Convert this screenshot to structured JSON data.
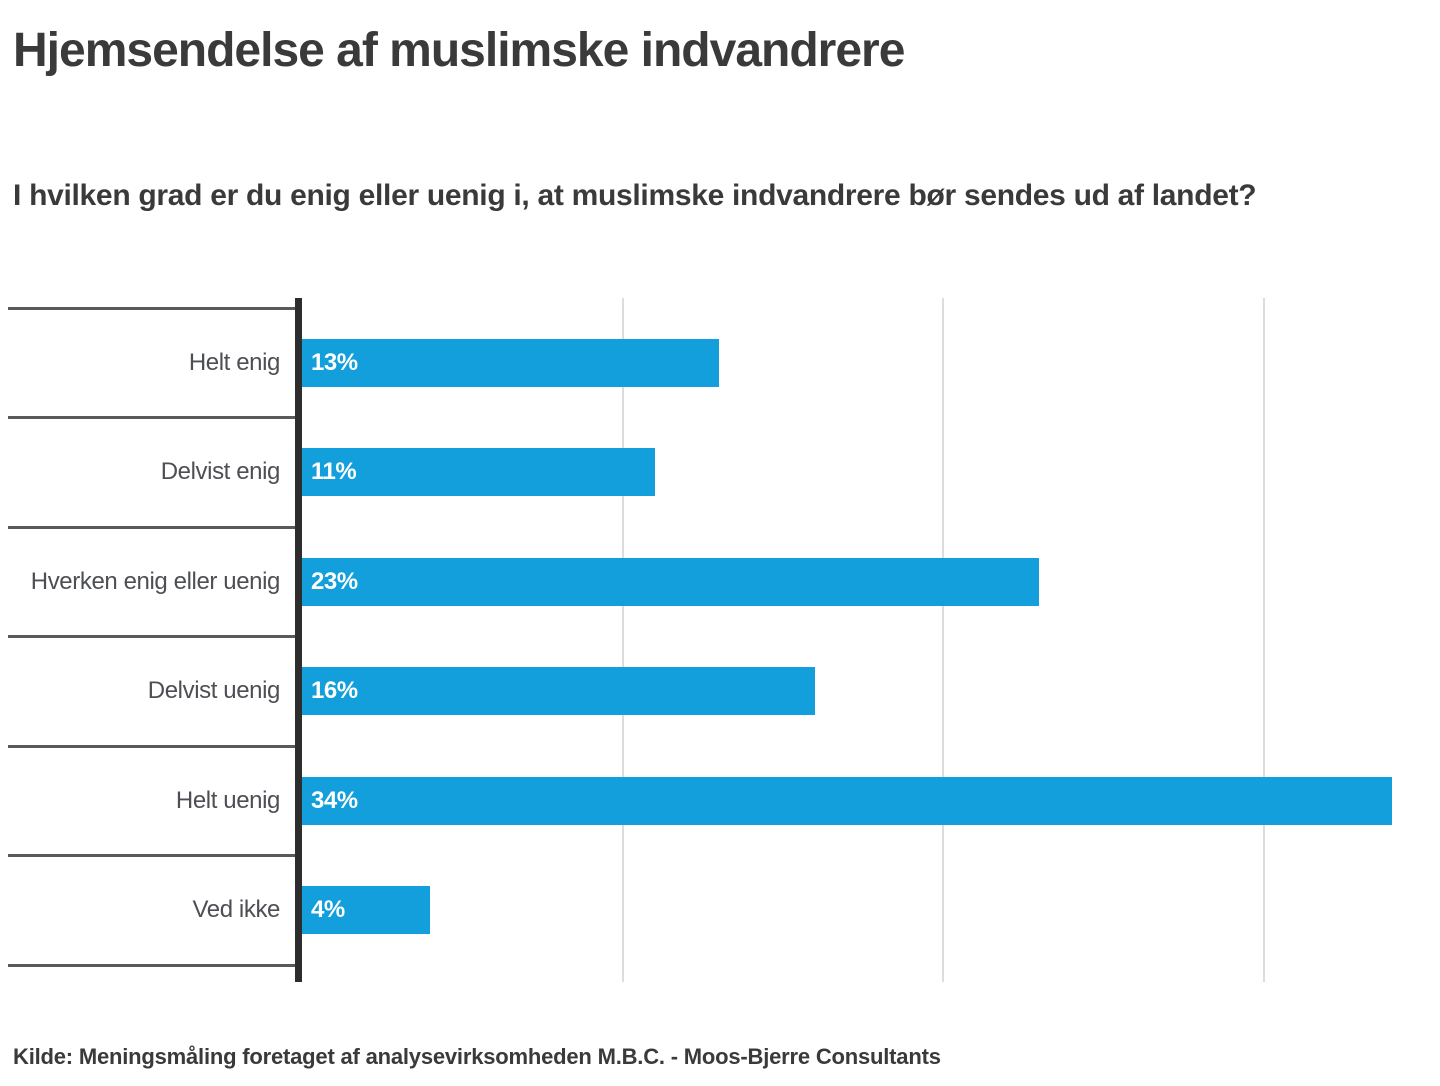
{
  "page": {
    "title": "Hjemsendelse af muslimske indvandrere",
    "subtitle": "I hvilken grad er du enig eller uenig i, at muslimske indvandrere bør sendes ud af landet?",
    "source": "Kilde: Meningsmåling foretaget af analysevirksomheden M.B.C. - Moos-Bjerre Consultants"
  },
  "chart_data": {
    "type": "bar",
    "orientation": "horizontal",
    "title": "Hjemsendelse af muslimske indvandrere",
    "subtitle": "I hvilken grad er du enig eller uenig i, at muslimske indvandrere bør sendes ud af landet?",
    "categories": [
      "Helt enig",
      "Delvist enig",
      "Hverken enig eller uenig",
      "Delvist uenig",
      "Helt uenig",
      "Ved ikke"
    ],
    "values": [
      13,
      11,
      23,
      16,
      34,
      4
    ],
    "value_labels": [
      "13%",
      "11%",
      "23%",
      "16%",
      "34%",
      "4%"
    ],
    "xlabel": "",
    "ylabel": "",
    "xlim": [
      0,
      35.5
    ],
    "gridlines_at": [
      10,
      20,
      30
    ],
    "grid": true,
    "legend": "none",
    "value_labels_position": "inside-start",
    "source": "Kilde: Meningsmåling foretaget af analysevirksomheden M.B.C. - Moos-Bjerre Consultants"
  },
  "colors": {
    "bar": "#129fdb",
    "value_label": "#ffffff",
    "axis_line": "#2d2d2d",
    "row_divider": "#58595b",
    "gridline": "#dcdcdc",
    "category_label": "#4d4f54",
    "heading_text": "#3a3a3a",
    "background": "#ffffff"
  }
}
